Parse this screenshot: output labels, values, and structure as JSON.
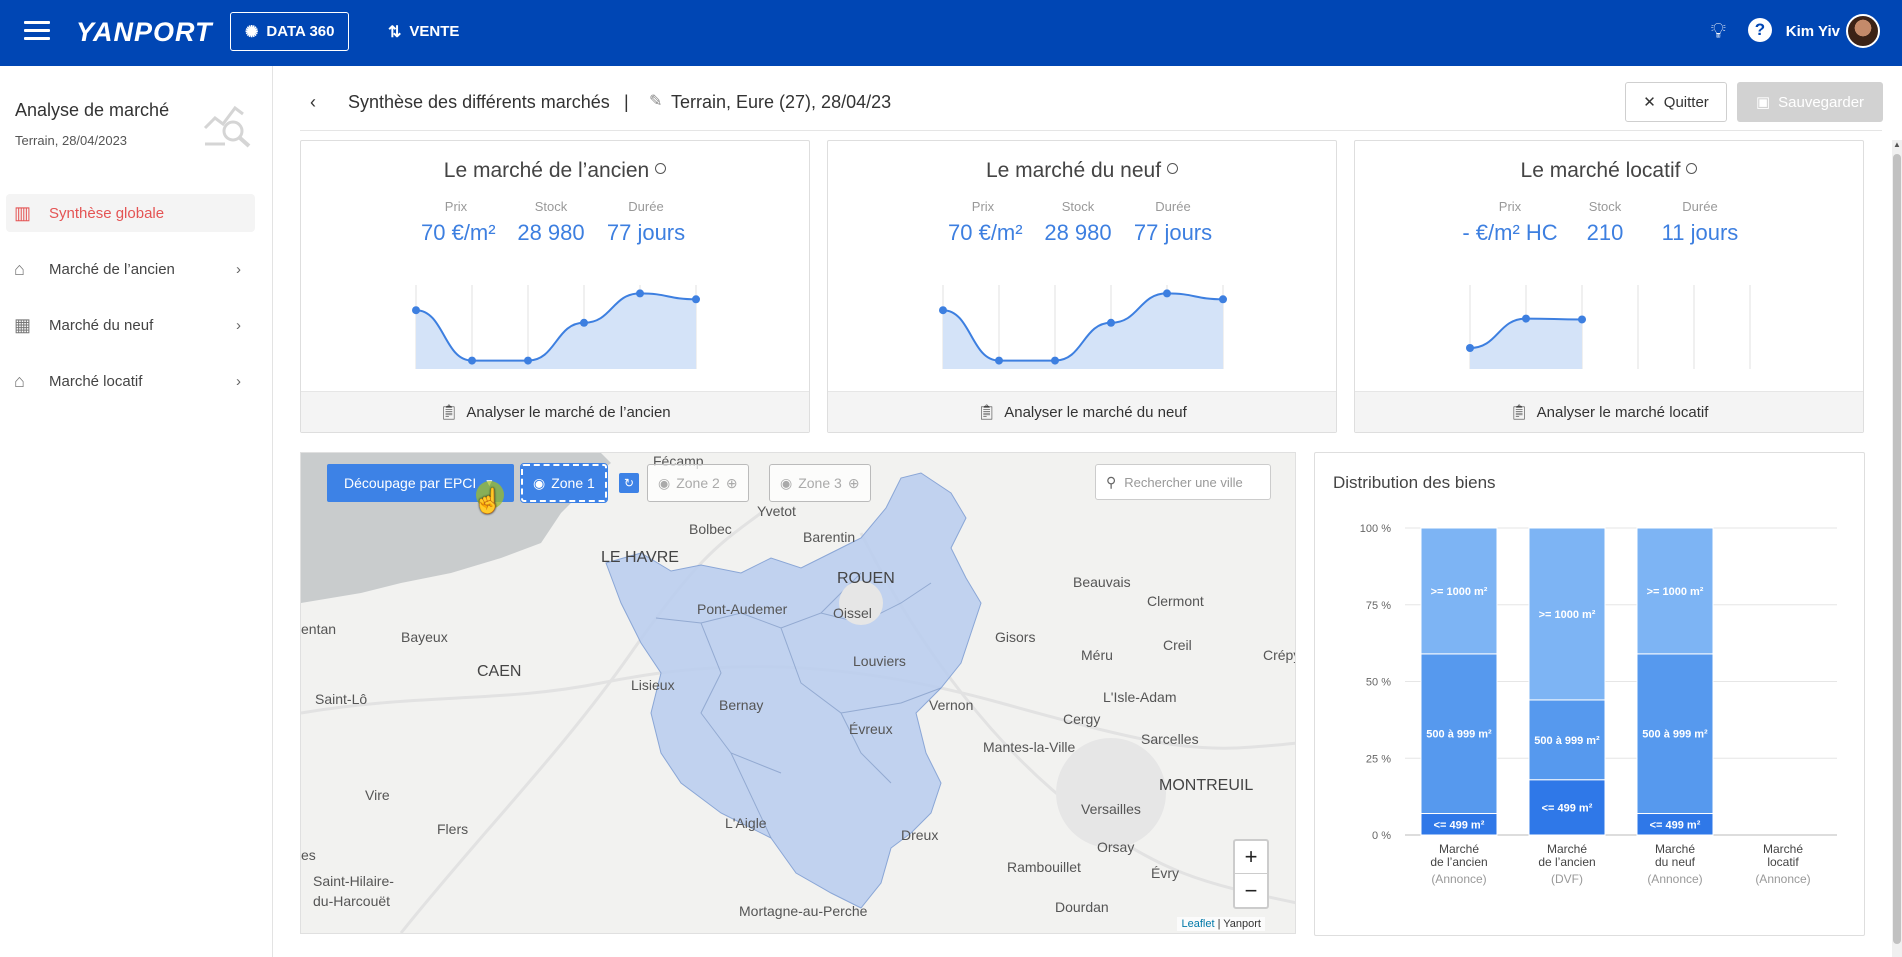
{
  "topbar": {
    "logo": "YANPORT",
    "nav": [
      {
        "label": "DATA 360",
        "icon": "data-icon"
      },
      {
        "label": "VENTE",
        "icon": "swap-icon"
      }
    ],
    "user_name": "Kim Yiv"
  },
  "sidebar": {
    "title": "Analyse de marché",
    "subtitle": "Terrain, 28/04/2023",
    "items": [
      {
        "label": "Synthèse globale",
        "icon": "buildings-icon",
        "active": true
      },
      {
        "label": "Marché de l’ancien",
        "icon": "house-hand-icon",
        "active": false
      },
      {
        "label": "Marché du neuf",
        "icon": "building-icon",
        "active": false
      },
      {
        "label": "Marché locatif",
        "icon": "house-key-icon",
        "active": false
      }
    ]
  },
  "header": {
    "title": "Synthèse des différents marchés",
    "separator": "|",
    "context": "Terrain, Eure (27), 28/04/23",
    "quit_label": "Quitter",
    "save_label": "Sauvegarder"
  },
  "cards": [
    {
      "title": "Le marché de l’ancien",
      "stats": [
        {
          "label": "Prix",
          "value": "70 €/m²"
        },
        {
          "label": "Stock",
          "value": "28 980"
        },
        {
          "label": "Durée",
          "value": "77 jours"
        }
      ],
      "trend": [
        0.7,
        0.1,
        0.1,
        0.55,
        0.9,
        0.83
      ],
      "footer": "Analyser le marché de l’ancien"
    },
    {
      "title": "Le marché du neuf",
      "stats": [
        {
          "label": "Prix",
          "value": "70 €/m²"
        },
        {
          "label": "Stock",
          "value": "28 980"
        },
        {
          "label": "Durée",
          "value": "77 jours"
        }
      ],
      "trend": [
        0.7,
        0.1,
        0.1,
        0.55,
        0.9,
        0.83
      ],
      "footer": "Analyser le marché du neuf"
    },
    {
      "title": "Le marché locatif",
      "stats": [
        {
          "label": "Prix",
          "value": "- €/m² HC"
        },
        {
          "label": "Stock",
          "value": "210"
        },
        {
          "label": "Durée",
          "value": "11 jours"
        }
      ],
      "trend": [
        0.25,
        0.6,
        0.59
      ],
      "footer": "Analyser le marché locatif"
    }
  ],
  "map": {
    "epci_button": "Découpage par EPCI",
    "zones": [
      "Zone 1",
      "Zone 2",
      "Zone 3"
    ],
    "search_placeholder": "Rechercher une ville",
    "labels": [
      "Fécamp",
      "Yvetot",
      "Bolbec",
      "Barentin",
      "LE HAVRE",
      "ROUEN",
      "Beauvais",
      "Pont-Audemer",
      "Oissel",
      "Clermont",
      "entan",
      "Bayeux",
      "Lisieux",
      "Louviers",
      "Gisors",
      "Méru",
      "Creil",
      "Crépy",
      "CAEN",
      "Saint-Lô",
      "Bernay",
      "Vernon",
      "L'Isle-Adam",
      "Évreux",
      "Cergy",
      "Mantes-la-Ville",
      "Sarcelles",
      "Vire",
      "MONTREUIL",
      "Flers",
      "L'Aigle",
      "Versailles",
      "Dreux",
      "Orsay",
      "es",
      "Saint-Hilaire-du-Harcouët",
      "Rambouillet",
      "Évry",
      "Mortagne-au-Perche",
      "Dourdan"
    ],
    "zoom_in": "+",
    "zoom_out": "−",
    "attribution_link": "Leaflet",
    "attribution_text": "| Yanport"
  },
  "chart_data": {
    "type": "bar",
    "title": "Distribution des biens",
    "stacked": true,
    "categories": [
      {
        "line1": "Marché",
        "line2": "de l’ancien",
        "source": "(Annonce)"
      },
      {
        "line1": "Marché",
        "line2": "de l’ancien",
        "source": "(DVF)"
      },
      {
        "line1": "Marché",
        "line2": "du neuf",
        "source": "(Annonce)"
      },
      {
        "line1": "Marché",
        "line2": "locatif",
        "source": "(Annonce)"
      }
    ],
    "yticks": [
      "100 %",
      "75 %",
      "50 %",
      "25 %",
      "0 %"
    ],
    "ylim": [
      0,
      100
    ],
    "series": [
      {
        "name": "<= 499 m²",
        "values": [
          7,
          18,
          7,
          0
        ],
        "color": "#2f78e8"
      },
      {
        "name": "500 à 999 m²",
        "values": [
          52,
          26,
          52,
          0
        ],
        "color": "#5699ee"
      },
      {
        "name": ">= 1000 m²",
        "values": [
          41,
          56,
          41,
          0
        ],
        "color": "#7db4f4"
      }
    ]
  }
}
